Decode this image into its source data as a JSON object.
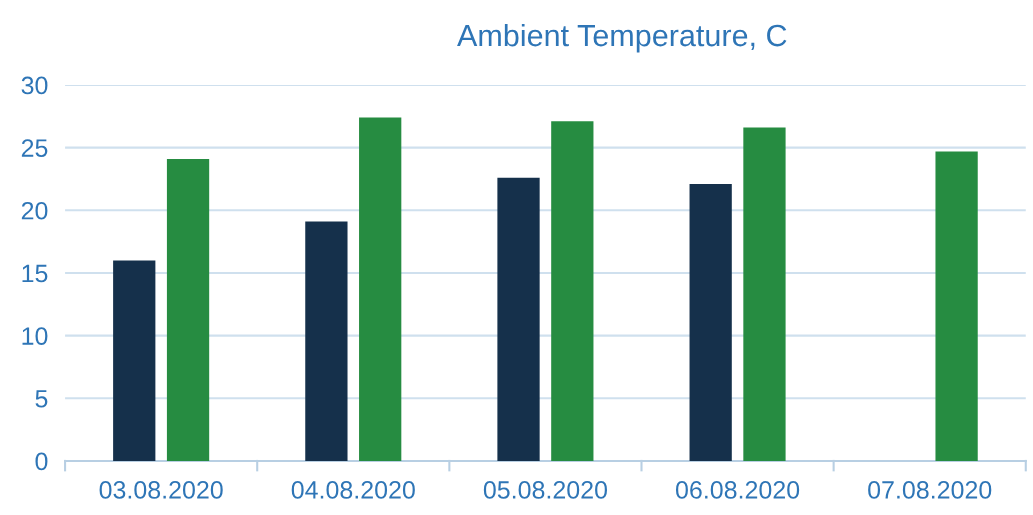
{
  "chart_data": {
    "type": "bar",
    "title": "Ambient Temperature, C",
    "categories": [
      "03.08.2020",
      "04.08.2020",
      "05.08.2020",
      "06.08.2020",
      "07.08.2020"
    ],
    "series": [
      {
        "color": "#15304b",
        "values": [
          16.0,
          19.1,
          22.6,
          22.1,
          null
        ]
      },
      {
        "color": "#268c41",
        "values": [
          24.1,
          27.4,
          27.1,
          26.6,
          24.7
        ]
      }
    ],
    "ylim": [
      0,
      30
    ],
    "yticks": [
      0,
      5,
      10,
      15,
      20,
      25,
      30
    ],
    "grid": "y",
    "legend": false
  }
}
